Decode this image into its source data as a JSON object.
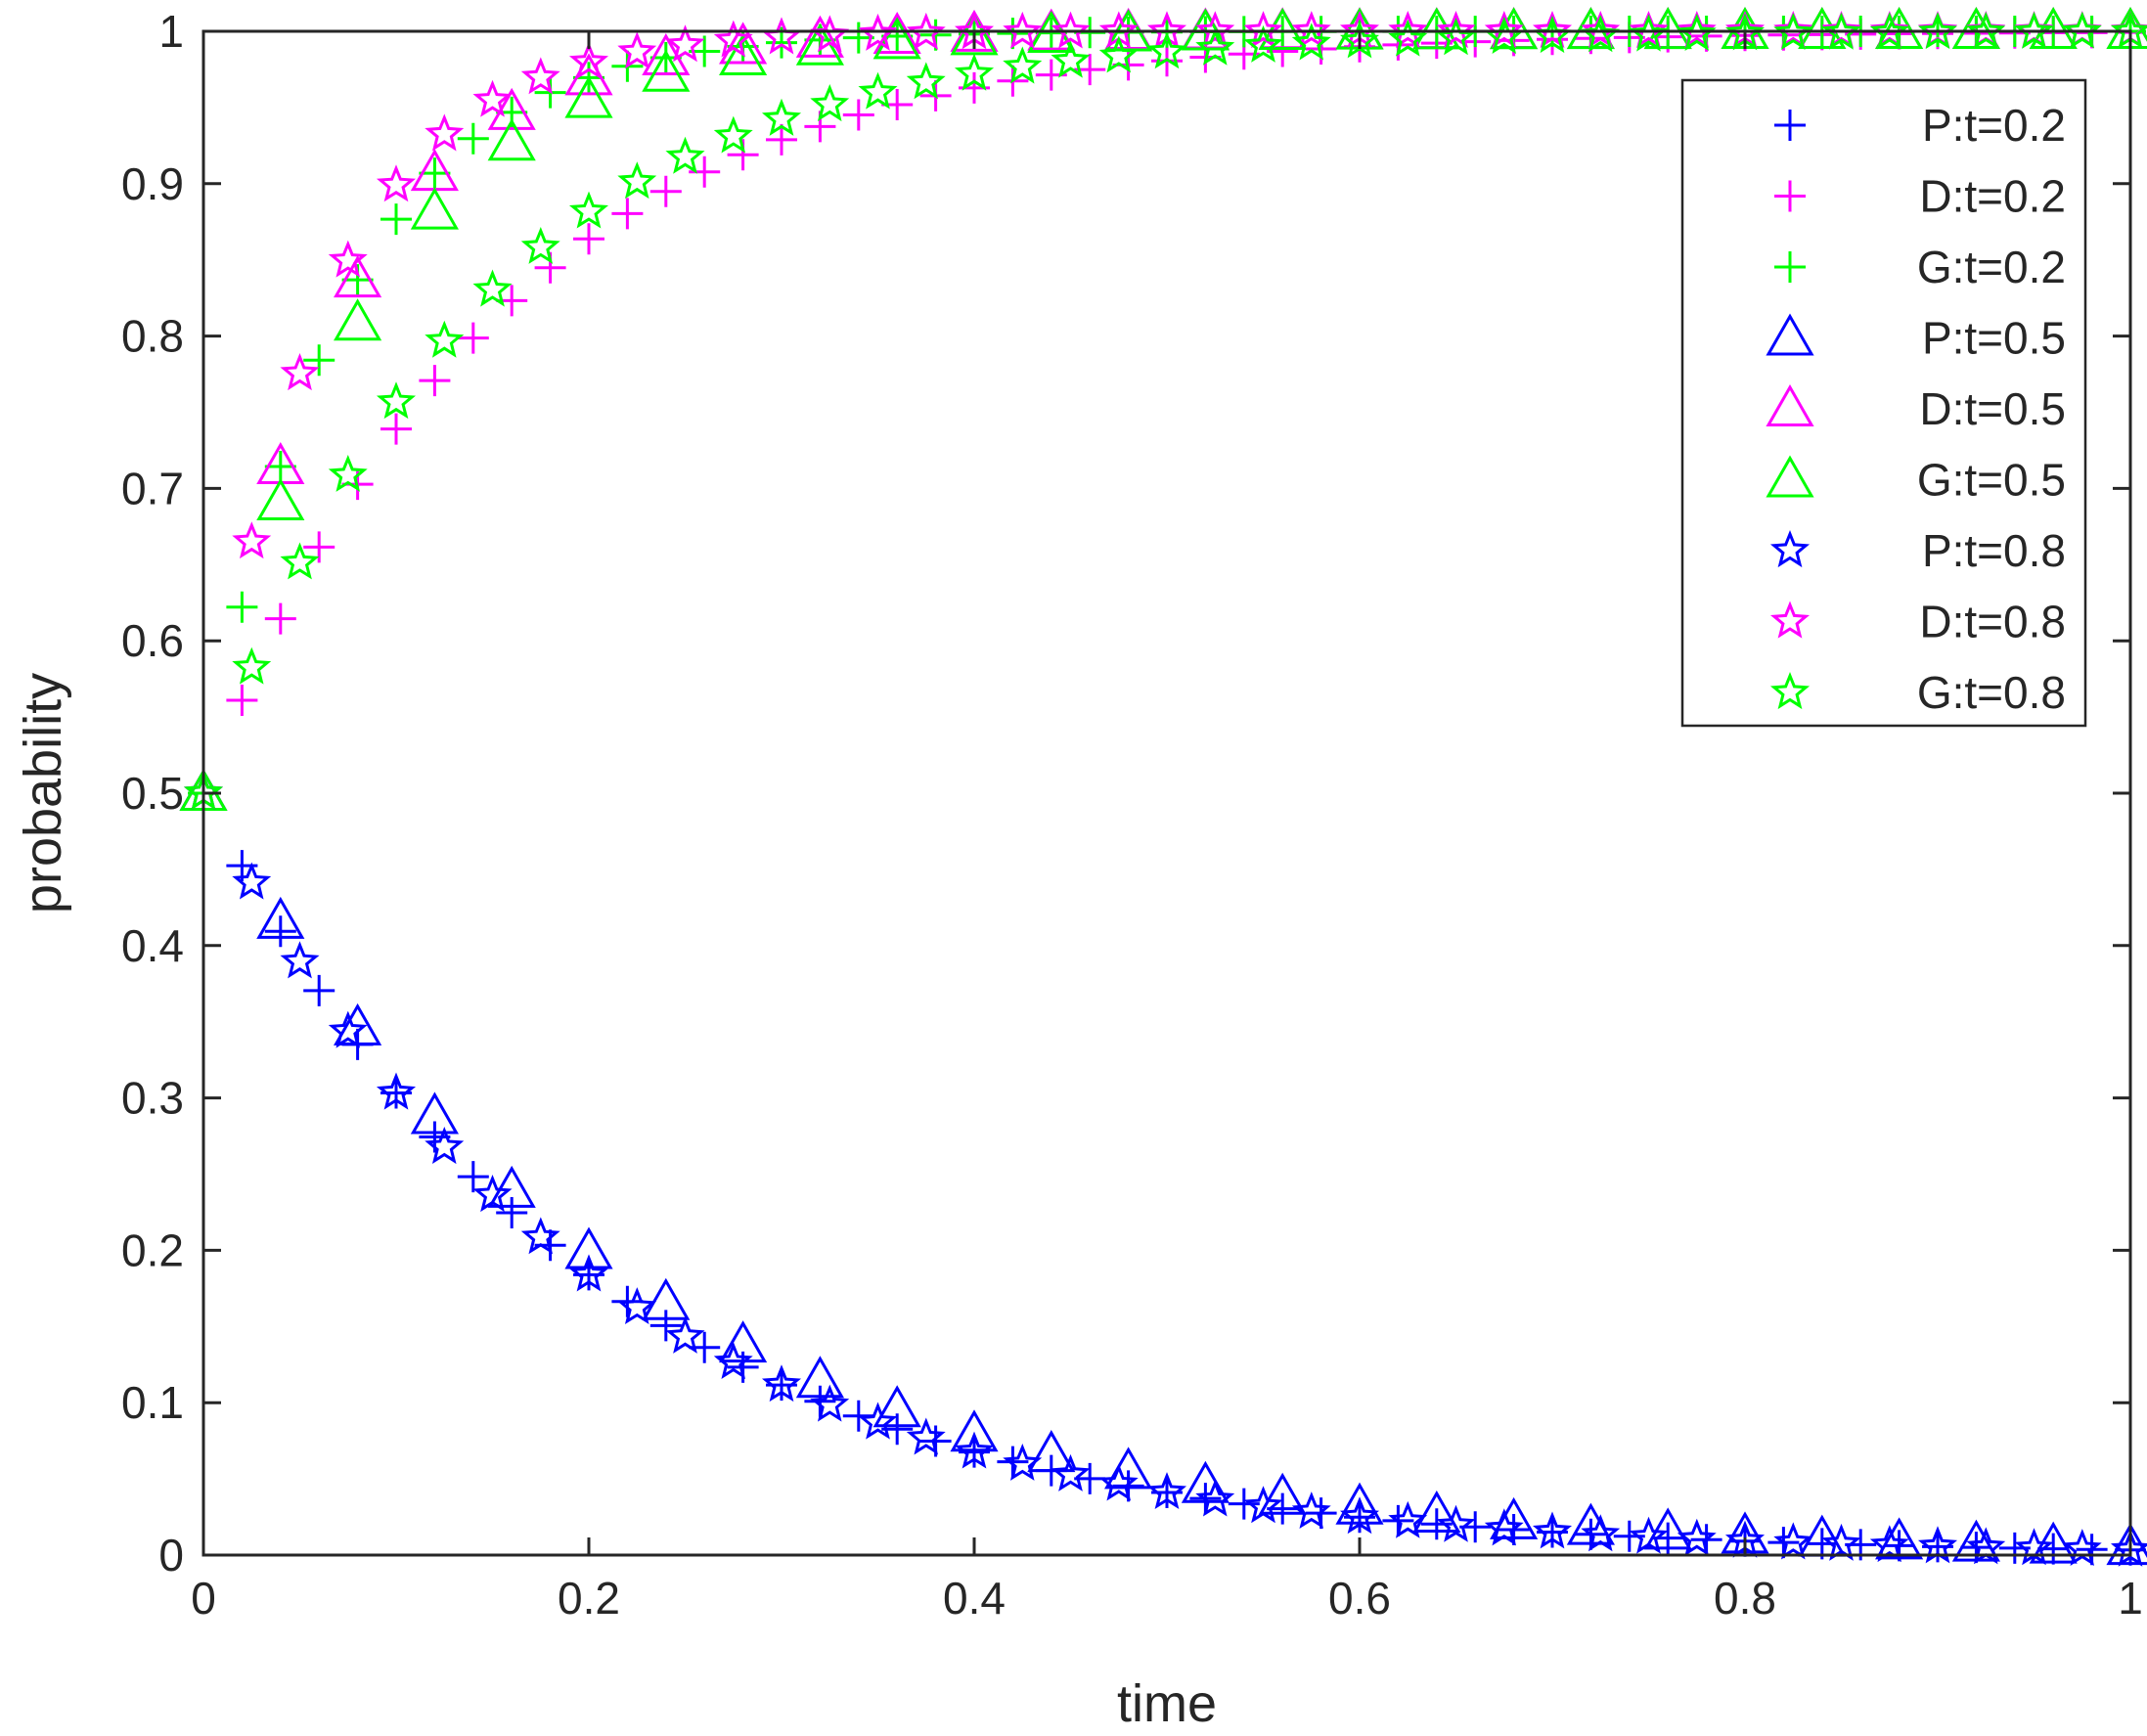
{
  "chart_data": {
    "type": "scatter",
    "title": "",
    "xlabel": "time",
    "ylabel": "probability",
    "xlim": [
      0,
      1
    ],
    "ylim": [
      0,
      1
    ],
    "x_ticks": [
      0,
      0.2,
      0.4,
      0.6,
      0.8,
      1
    ],
    "x_tick_labels": [
      "0",
      "0.2",
      "0.4",
      "0.6",
      "0.8",
      "1"
    ],
    "y_ticks": [
      0,
      0.1,
      0.2,
      0.3,
      0.4,
      0.5,
      0.6,
      0.7,
      0.8,
      0.9,
      1
    ],
    "y_tick_labels": [
      "0",
      "0.1",
      "0.2",
      "0.3",
      "0.4",
      "0.5",
      "0.6",
      "0.7",
      "0.8",
      "0.9",
      "1"
    ],
    "grid": false,
    "legend_position": "top-right",
    "colors": {
      "P": "#0000ff",
      "D": "#ff00ff",
      "G": "#00ff00",
      "axes": "#262626"
    },
    "series": [
      {
        "name": "P:t=0.2",
        "group": "P",
        "marker": "plus",
        "rate": 5.0,
        "start": 0.5,
        "step": 0.02
      },
      {
        "name": "D:t=0.2",
        "group": "D",
        "marker": "plus",
        "rate": 6.5,
        "start": 0.5,
        "step": 0.02
      },
      {
        "name": "G:t=0.2",
        "group": "G",
        "marker": "plus",
        "rate": 14.0,
        "start": 0.5,
        "step": 0.02
      },
      {
        "name": "P:t=0.5",
        "group": "P",
        "marker": "triangle",
        "rate": 4.6,
        "start": 0.5,
        "step": 0.04
      },
      {
        "name": "D:t=0.5",
        "group": "D",
        "marker": "triangle",
        "rate": 14.0,
        "start": 0.5,
        "step": 0.04
      },
      {
        "name": "G:t=0.5",
        "group": "G",
        "marker": "triangle",
        "rate": 12.0,
        "start": 0.5,
        "step": 0.04
      },
      {
        "name": "P:t=0.8",
        "group": "P",
        "marker": "star",
        "rate": 5.0,
        "start": 0.5,
        "step": 0.025
      },
      {
        "name": "D:t=0.8",
        "group": "D",
        "marker": "star",
        "rate": 16.0,
        "start": 0.5,
        "step": 0.025
      },
      {
        "name": "G:t=0.8",
        "group": "G",
        "marker": "star",
        "rate": 7.2,
        "start": 0.5,
        "step": 0.025
      }
    ]
  }
}
